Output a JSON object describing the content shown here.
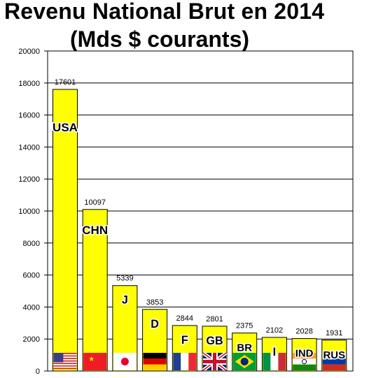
{
  "header": {
    "title_line1": "Revenu National Brut en 2014",
    "title_line2": "(Mds $ courants)"
  },
  "chart_data": {
    "type": "bar",
    "title": "Revenu National Brut en 2014 (Mds $ courants)",
    "xlabel": "",
    "ylabel": "",
    "ylim": [
      0,
      20000
    ],
    "yticks": [
      0,
      2000,
      4000,
      6000,
      8000,
      10000,
      12000,
      14000,
      16000,
      18000,
      20000
    ],
    "grid": true,
    "categories": [
      "USA",
      "CHN",
      "J",
      "D",
      "F",
      "GB",
      "BR",
      "I",
      "IND",
      "RUS"
    ],
    "values": [
      17601,
      10097,
      5339,
      3853,
      2844,
      2801,
      2375,
      2102,
      2028,
      1931
    ],
    "bar_color": "#ffff00",
    "flag_icons": [
      "usa-flag-icon",
      "china-flag-icon",
      "japan-flag-icon",
      "germany-flag-icon",
      "france-flag-icon",
      "uk-flag-icon",
      "brazil-flag-icon",
      "italy-flag-icon",
      "india-flag-icon",
      "russia-flag-icon"
    ]
  }
}
